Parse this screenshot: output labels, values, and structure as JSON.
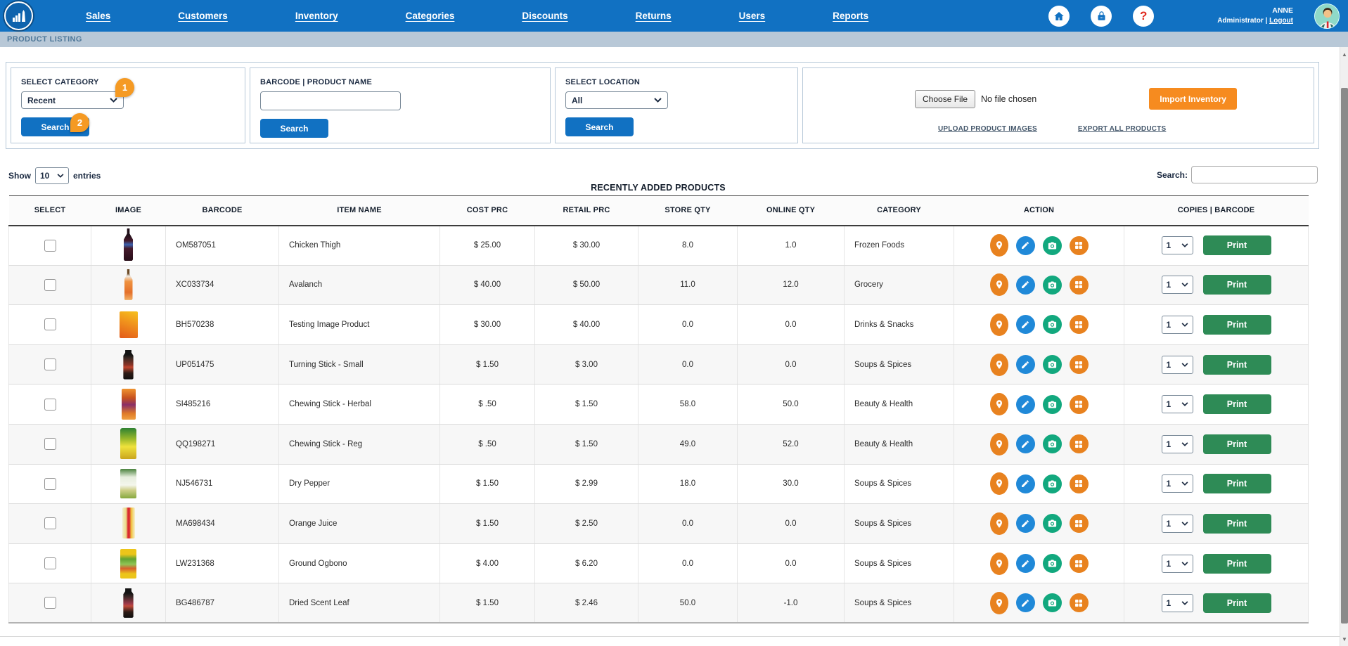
{
  "nav": {
    "items": [
      "Sales",
      "Customers",
      "Inventory",
      "Categories",
      "Discounts",
      "Returns",
      "Users",
      "Reports"
    ],
    "user": {
      "name": "ANNE",
      "role": "Administrator",
      "separator": "|",
      "logout_label": "Logout"
    }
  },
  "breadcrumb": "PRODUCT LISTING",
  "filters": {
    "category": {
      "label": "SELECT CATEGORY",
      "value": "Recent",
      "search_label": "Search",
      "badge_select": "1",
      "badge_search": "2"
    },
    "barcode": {
      "label": "BARCODE | PRODUCT NAME",
      "value": "",
      "search_label": "Search"
    },
    "location": {
      "label": "SELECT LOCATION",
      "value": "All",
      "search_label": "Search"
    },
    "import": {
      "choose_file_label": "Choose File",
      "no_file_text": "No file chosen",
      "import_label": "Import Inventory",
      "upload_images_label": "UPLOAD PRODUCT IMAGES",
      "export_label": "EXPORT ALL PRODUCTS"
    }
  },
  "table_controls": {
    "show_label": "Show",
    "page_size": "10",
    "entries_label": "entries",
    "search_label": "Search:",
    "search_value": ""
  },
  "table": {
    "title": "RECENTLY ADDED PRODUCTS",
    "columns": [
      "SELECT",
      "IMAGE",
      "BARCODE",
      "ITEM NAME",
      "COST PRC",
      "RETAIL PRC",
      "STORE QTY",
      "ONLINE QTY",
      "CATEGORY",
      "ACTION",
      "COPIES  |  BARCODE"
    ],
    "copies_value": "1",
    "print_label": "Print",
    "rows": [
      {
        "barcode": "OM587051",
        "item": "Chicken Thigh",
        "cost": "$ 25.00",
        "retail": "$ 30.00",
        "store_qty": "8.0",
        "online_qty": "1.0",
        "category": "Frozen Foods",
        "thumb": "bottle-dark"
      },
      {
        "barcode": "XC033734",
        "item": "Avalanch",
        "cost": "$ 40.00",
        "retail": "$ 50.00",
        "store_qty": "11.0",
        "online_qty": "12.0",
        "category": "Grocery",
        "thumb": "bottle-orange"
      },
      {
        "barcode": "BH570238",
        "item": "Testing Image Product",
        "cost": "$ 30.00",
        "retail": "$ 40.00",
        "store_qty": "0.0",
        "online_qty": "0.0",
        "category": "Drinks & Snacks",
        "thumb": "box-orange"
      },
      {
        "barcode": "UP051475",
        "item": "Turning Stick - Small",
        "cost": "$ 1.50",
        "retail": "$ 3.00",
        "store_qty": "0.0",
        "online_qty": "0.0",
        "category": "Soups & Spices",
        "thumb": "jar-dark"
      },
      {
        "barcode": "SI485216",
        "item": "Chewing Stick - Herbal",
        "cost": "$ .50",
        "retail": "$ 1.50",
        "store_qty": "58.0",
        "online_qty": "50.0",
        "category": "Beauty & Health",
        "thumb": "pack-orange"
      },
      {
        "barcode": "QQ198271",
        "item": "Chewing Stick - Reg",
        "cost": "$ .50",
        "retail": "$ 1.50",
        "store_qty": "49.0",
        "online_qty": "52.0",
        "category": "Beauty & Health",
        "thumb": "pouch-green"
      },
      {
        "barcode": "NJ546731",
        "item": "Dry Pepper",
        "cost": "$ 1.50",
        "retail": "$ 2.99",
        "store_qty": "18.0",
        "online_qty": "30.0",
        "category": "Soups & Spices",
        "thumb": "pack-green"
      },
      {
        "barcode": "MA698434",
        "item": "Orange Juice",
        "cost": "$ 1.50",
        "retail": "$ 2.50",
        "store_qty": "0.0",
        "online_qty": "0.0",
        "category": "Soups & Spices",
        "thumb": "pack-yellow"
      },
      {
        "barcode": "LW231368",
        "item": "Ground Ogbono",
        "cost": "$ 4.00",
        "retail": "$ 6.20",
        "store_qty": "0.0",
        "online_qty": "0.0",
        "category": "Soups & Spices",
        "thumb": "box-yellow"
      },
      {
        "barcode": "BG486787",
        "item": "Dried Scent Leaf",
        "cost": "$ 1.50",
        "retail": "$ 2.46",
        "store_qty": "50.0",
        "online_qty": "-1.0",
        "category": "Soups & Spices",
        "thumb": "jar-dark2"
      }
    ]
  },
  "colors": {
    "nav_blue": "#1171c2",
    "breadcrumb_bg": "#b8c8d7",
    "button_blue": "#1171c2",
    "import_orange": "#f68b1f",
    "badge_orange": "#f59a23",
    "print_green": "#2e8b56",
    "icon_orange": "#e8821f",
    "icon_blue": "#2089d8",
    "icon_green": "#12a87e",
    "help_red": "#e02b20"
  }
}
